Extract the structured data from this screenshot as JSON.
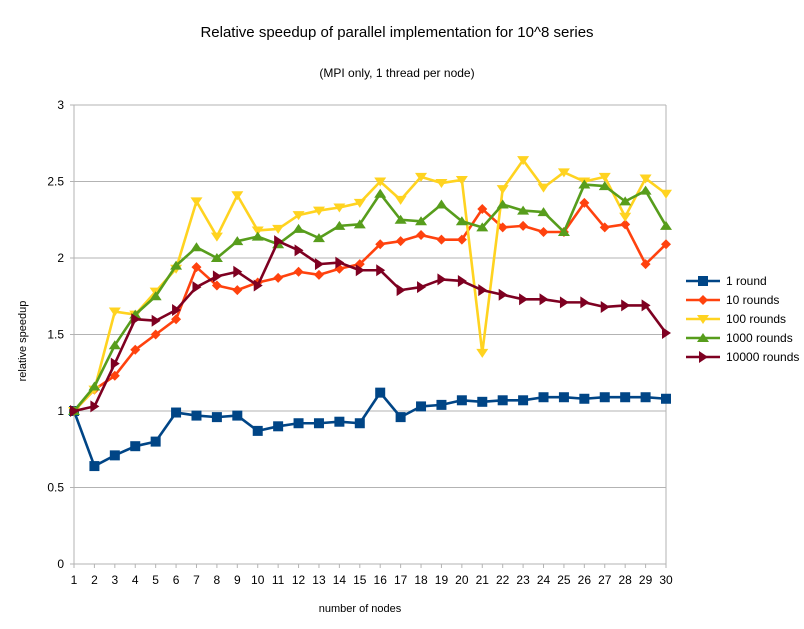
{
  "chart_data": {
    "type": "line",
    "title": "Relative speedup of parallel implementation for 10^8 series",
    "subtitle": "(MPI only, 1 thread per node)",
    "xlabel": "number of nodes",
    "ylabel": "relative speedup",
    "x": [
      1,
      2,
      3,
      4,
      5,
      6,
      7,
      8,
      9,
      10,
      11,
      12,
      13,
      14,
      15,
      16,
      17,
      18,
      19,
      20,
      21,
      22,
      23,
      24,
      25,
      26,
      27,
      28,
      29,
      30
    ],
    "xlim": [
      1,
      30
    ],
    "ylim": [
      0,
      3
    ],
    "y_ticks": [
      "0",
      "0.5",
      "1",
      "1.5",
      "2",
      "2.5",
      "3"
    ],
    "x_ticks": [
      "1",
      "2",
      "3",
      "4",
      "5",
      "6",
      "7",
      "8",
      "9",
      "10",
      "11",
      "12",
      "13",
      "14",
      "15",
      "16",
      "17",
      "18",
      "19",
      "20",
      "21",
      "22",
      "23",
      "24",
      "25",
      "26",
      "27",
      "28",
      "29",
      "30"
    ],
    "grid": "horizontal",
    "legend_position": "right",
    "series": [
      {
        "name": "1 round",
        "color": "#004586",
        "marker": "square",
        "values": [
          1.0,
          0.64,
          0.71,
          0.77,
          0.8,
          0.99,
          0.97,
          0.96,
          0.97,
          0.87,
          0.9,
          0.92,
          0.92,
          0.93,
          0.92,
          1.12,
          0.96,
          1.03,
          1.04,
          1.07,
          1.06,
          1.07,
          1.07,
          1.09,
          1.09,
          1.08,
          1.09,
          1.09,
          1.09,
          1.08
        ]
      },
      {
        "name": "10 rounds",
        "color": "#ff420e",
        "marker": "diamond",
        "values": [
          1.0,
          1.14,
          1.23,
          1.4,
          1.5,
          1.6,
          1.94,
          1.82,
          1.79,
          1.84,
          1.87,
          1.91,
          1.89,
          1.93,
          1.96,
          2.09,
          2.11,
          2.15,
          2.12,
          2.12,
          2.32,
          2.2,
          2.21,
          2.17,
          2.17,
          2.36,
          2.2,
          2.22,
          1.96,
          2.09
        ]
      },
      {
        "name": "100 rounds",
        "color": "#ffd320",
        "marker": "triangle-down",
        "values": [
          1.0,
          1.14,
          1.65,
          1.63,
          1.78,
          1.93,
          2.37,
          2.14,
          2.41,
          2.18,
          2.19,
          2.28,
          2.31,
          2.33,
          2.36,
          2.5,
          2.38,
          2.53,
          2.49,
          2.51,
          1.38,
          2.45,
          2.64,
          2.46,
          2.56,
          2.5,
          2.53,
          2.27,
          2.52,
          2.42
        ]
      },
      {
        "name": "1000 rounds",
        "color": "#579d1c",
        "marker": "triangle-up",
        "values": [
          1.0,
          1.16,
          1.43,
          1.63,
          1.75,
          1.95,
          2.07,
          2.0,
          2.11,
          2.14,
          2.09,
          2.19,
          2.13,
          2.21,
          2.22,
          2.42,
          2.25,
          2.24,
          2.35,
          2.24,
          2.2,
          2.35,
          2.31,
          2.3,
          2.17,
          2.48,
          2.47,
          2.37,
          2.44,
          2.21
        ]
      },
      {
        "name": "10000 rounds",
        "color": "#7e0021",
        "marker": "triangle-right",
        "values": [
          1.0,
          1.03,
          1.31,
          1.6,
          1.59,
          1.66,
          1.81,
          1.88,
          1.91,
          1.82,
          2.11,
          2.05,
          1.96,
          1.97,
          1.92,
          1.92,
          1.79,
          1.81,
          1.86,
          1.85,
          1.79,
          1.76,
          1.73,
          1.73,
          1.71,
          1.71,
          1.68,
          1.69,
          1.69,
          1.51
        ]
      }
    ]
  }
}
